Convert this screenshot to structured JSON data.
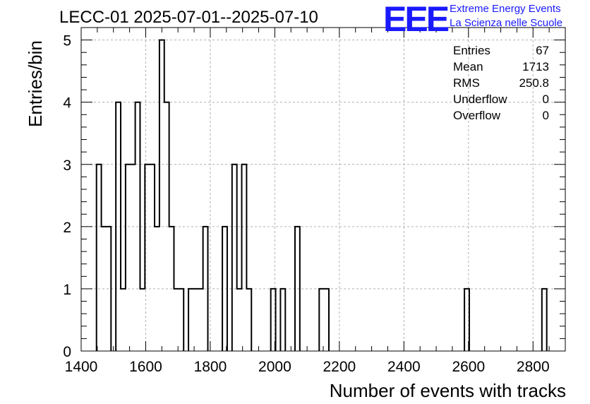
{
  "chart_data": {
    "type": "bar",
    "title": "LECC-01 2025-07-01--2025-07-10",
    "xlabel": "Number of events with tracks",
    "ylabel": "Entries/bin",
    "xlim": [
      1400,
      2900
    ],
    "ylim": [
      0,
      5.2
    ],
    "bin_width": 15,
    "xticks": [
      "1400",
      "1600",
      "1800",
      "2000",
      "2200",
      "2400",
      "2600",
      "2800"
    ],
    "yticks": [
      "0",
      "1",
      "2",
      "3",
      "4",
      "5"
    ],
    "grid": true,
    "bins": [
      {
        "x": 1455,
        "y": 3
      },
      {
        "x": 1470,
        "y": 2
      },
      {
        "x": 1485,
        "y": 2
      },
      {
        "x": 1515,
        "y": 4
      },
      {
        "x": 1530,
        "y": 1
      },
      {
        "x": 1545,
        "y": 3
      },
      {
        "x": 1560,
        "y": 3
      },
      {
        "x": 1575,
        "y": 4
      },
      {
        "x": 1590,
        "y": 1
      },
      {
        "x": 1605,
        "y": 3
      },
      {
        "x": 1620,
        "y": 3
      },
      {
        "x": 1635,
        "y": 2
      },
      {
        "x": 1650,
        "y": 5
      },
      {
        "x": 1665,
        "y": 4
      },
      {
        "x": 1680,
        "y": 2
      },
      {
        "x": 1695,
        "y": 1
      },
      {
        "x": 1710,
        "y": 1
      },
      {
        "x": 1740,
        "y": 1
      },
      {
        "x": 1755,
        "y": 1
      },
      {
        "x": 1770,
        "y": 1
      },
      {
        "x": 1785,
        "y": 2
      },
      {
        "x": 1845,
        "y": 2
      },
      {
        "x": 1875,
        "y": 3
      },
      {
        "x": 1890,
        "y": 1
      },
      {
        "x": 1905,
        "y": 3
      },
      {
        "x": 1920,
        "y": 1
      },
      {
        "x": 1995,
        "y": 1
      },
      {
        "x": 2025,
        "y": 1
      },
      {
        "x": 2070,
        "y": 2
      },
      {
        "x": 2145,
        "y": 1
      },
      {
        "x": 2160,
        "y": 1
      },
      {
        "x": 2595,
        "y": 1
      },
      {
        "x": 2835,
        "y": 1
      }
    ]
  },
  "logo": {
    "mark": "EEE",
    "line1": "Extreme Energy Events",
    "line2": "La Scienza nelle Scuole"
  },
  "stats": [
    {
      "label": "Entries",
      "value": "67"
    },
    {
      "label": "Mean",
      "value": "1713"
    },
    {
      "label": "RMS",
      "value": "250.8"
    },
    {
      "label": "Underflow",
      "value": "0"
    },
    {
      "label": "Overflow",
      "value": "0"
    }
  ]
}
